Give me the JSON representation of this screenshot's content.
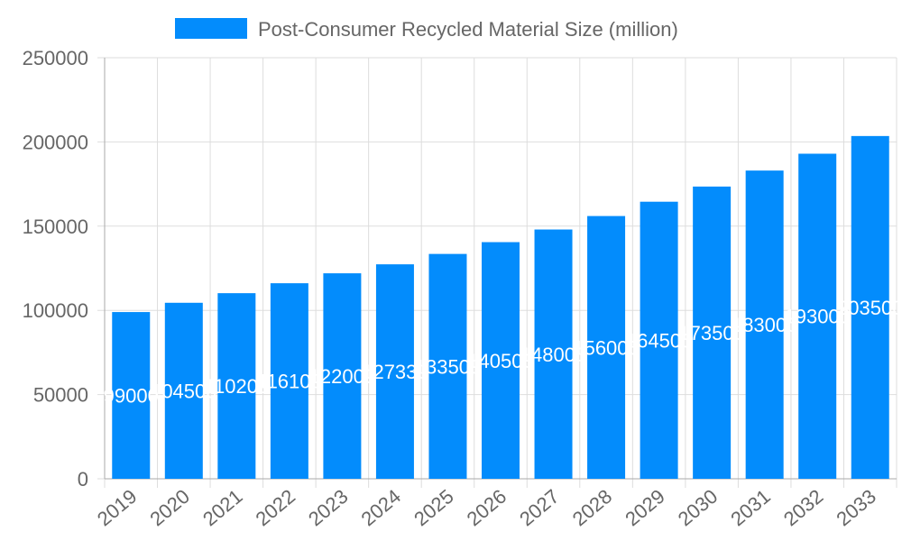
{
  "chart_data": {
    "type": "bar",
    "categories": [
      "2019",
      "2020",
      "2021",
      "2022",
      "2023",
      "2024",
      "2025",
      "2026",
      "2027",
      "2028",
      "2029",
      "2030",
      "2031",
      "2032",
      "2033"
    ],
    "series": [
      {
        "name": "Post-Consumer Recycled Material Size (million)",
        "values": [
          99000,
          104500,
          110200,
          116100,
          122000,
          127330,
          133500,
          140500,
          148000,
          156000,
          164500,
          173500,
          183000,
          193000,
          203500
        ]
      }
    ],
    "ylim": [
      0,
      250000
    ],
    "yticks": [
      0,
      50000,
      100000,
      150000,
      200000,
      250000
    ],
    "grid": true,
    "legend": "top",
    "bar_color": "#038CFC",
    "data_labels": true
  }
}
